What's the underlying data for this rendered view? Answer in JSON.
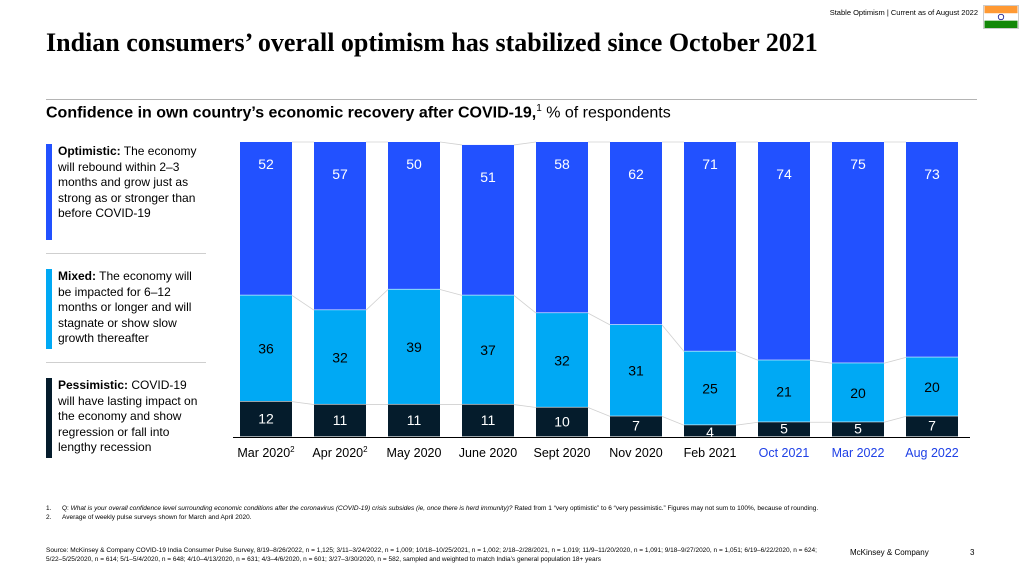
{
  "header": {
    "topline": "Stable Optimism | Current as of August 2022",
    "title": "Indian consumers’ overall optimism has stabilized since October 2021",
    "subtitle_bold": "Confidence in own country’s economic recovery after COVID-19,",
    "subtitle_sup": "1",
    "subtitle_rest": " % of respondents"
  },
  "legend": [
    {
      "label": "Optimistic:",
      "text": " The economy will rebound within 2–3 months and grow just as strong as or stronger than before COVID-19"
    },
    {
      "label": "Mixed:",
      "text": " The economy will be impacted for 6–12 months or longer and will stagnate or show slow growth thereafter"
    },
    {
      "label": "Pessimistic:",
      "text": " COVID-19 will have lasting impact on the economy and show regression or fall into lengthy recession"
    }
  ],
  "colors": {
    "optimistic": "#2251ff",
    "mixed": "#00a9f4",
    "pessimistic": "#051c2c",
    "connector": "#d0d0d0"
  },
  "chart_data": {
    "type": "bar",
    "stacked": true,
    "categories": [
      "Mar 2020",
      "Apr 2020",
      "May 2020",
      "June 2020",
      "Sept 2020",
      "Nov 2020",
      "Feb 2021",
      "Oct 2021",
      "Mar 2022",
      "Aug 2022"
    ],
    "category_sups": [
      "2",
      "2",
      "",
      "",
      "",
      "",
      "",
      "",
      "",
      ""
    ],
    "highlight_categories": [
      "Oct 2021",
      "Mar 2022",
      "Aug 2022"
    ],
    "series": [
      {
        "name": "Pessimistic",
        "values": [
          12,
          11,
          11,
          11,
          10,
          7,
          4,
          5,
          5,
          7
        ]
      },
      {
        "name": "Mixed",
        "values": [
          36,
          32,
          39,
          37,
          32,
          31,
          25,
          21,
          20,
          20
        ]
      },
      {
        "name": "Optimistic",
        "values": [
          52,
          57,
          50,
          51,
          58,
          62,
          71,
          74,
          75,
          73
        ]
      }
    ],
    "ylim": [
      0,
      100
    ],
    "xlabel": "",
    "ylabel": ""
  },
  "footnotes": [
    {
      "num": "1.",
      "lead": "Q: ",
      "italic": "What is your overall confidence level surrounding economic conditions after the coronavirus (COVID-19) crisis subsides (ie, once there is herd immunity)?",
      "rest": " Rated from 1 “very optimistic” to 6 “very pessimistic.” Figures may not sum to 100%, because of rounding."
    },
    {
      "num": "2.",
      "lead": "",
      "italic": "",
      "rest": "Average of weekly pulse surveys shown for March and April 2020."
    }
  ],
  "source": "Source: McKinsey & Company COVID-19 India Consumer Pulse Survey, 8/19–8/26/2022, n = 1,125; 3/11–3/24/2022, n = 1,009; 10/18–10/25/2021, n = 1,002; 2/18–2/28/2021, n = 1,019; 11/9–11/20/2020, n = 1,091; 9/18–9/27/2020, n = 1,051; 6/19–6/22/2020, n = 624; 5/22–5/25/2020, n = 614; 5/1–5/4/2020, n = 648; 4/10–4/13/2020, n = 631; 4/3–4/6/2020, n = 601; 3/27–3/30/2020, n = 582, sampled and weighted to match India’s general population 18+ years",
  "footer": {
    "brand": "McKinsey & Company",
    "page": "3"
  }
}
